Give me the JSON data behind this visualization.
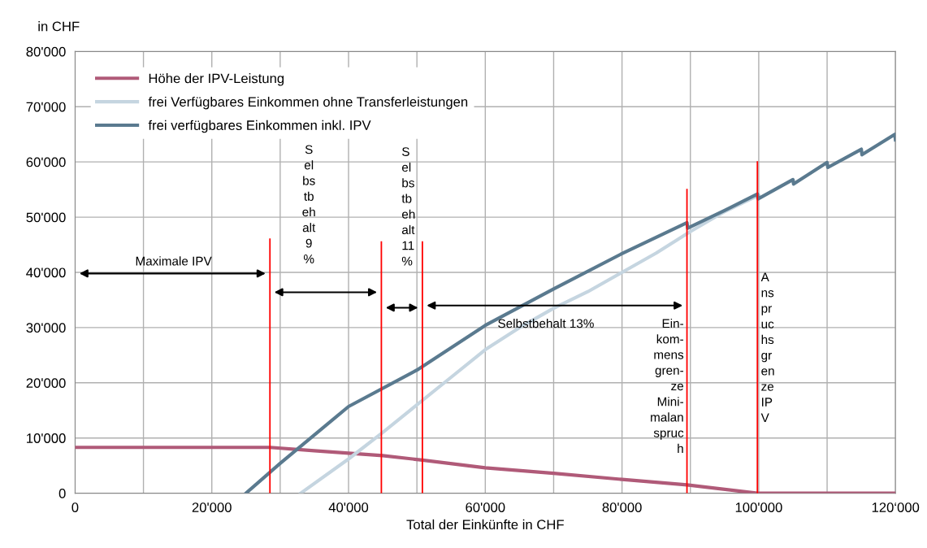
{
  "chart_data": {
    "type": "line",
    "xlabel": "Total der Einkünfte in CHF",
    "ylabel": "in CHF",
    "xlim": [
      0,
      120000
    ],
    "ylim": [
      0,
      80000
    ],
    "xticks": [
      0,
      {
        "value": 10000,
        "label": null
      },
      {
        "value": 20000,
        "label": "20'000"
      },
      {
        "value": 30000,
        "label": null
      },
      {
        "value": 40000,
        "label": "40'000"
      },
      {
        "value": 50000,
        "label": null
      },
      {
        "value": 60000,
        "label": "60'000"
      },
      {
        "value": 70000,
        "label": null
      },
      {
        "value": 80000,
        "label": "80'000"
      },
      {
        "value": 90000,
        "label": null
      },
      {
        "value": 100000,
        "label": "100'000"
      },
      {
        "value": 110000,
        "label": null
      },
      {
        "value": 120000,
        "label": "120‘000"
      }
    ],
    "yticks": [
      0,
      {
        "value": 10000,
        "label": "10'000"
      },
      {
        "value": 20000,
        "label": "20'000"
      },
      {
        "value": 30000,
        "label": "30'000"
      },
      {
        "value": 40000,
        "label": "40'000"
      },
      {
        "value": 50000,
        "label": "50'000"
      },
      {
        "value": 60000,
        "label": "60'000"
      },
      {
        "value": 70000,
        "label": "70'000"
      },
      {
        "value": 80000,
        "label": "80'000"
      }
    ],
    "grid": true,
    "legend": "top left",
    "series": [
      {
        "name": "Höhe der IPV-Leistung",
        "color": "#b05a78",
        "x": [
          0,
          28500,
          35000,
          45000,
          50800,
          60000,
          70000,
          80000,
          89500,
          99800,
          120000
        ],
        "values": [
          8300,
          8300,
          7700,
          6800,
          6000,
          4600,
          3600,
          2500,
          1500,
          0,
          0
        ]
      },
      {
        "name": "frei Verfügbares Einkommen ohne Transferleistungen",
        "color": "#c5d5e0",
        "x": [
          33000,
          40000,
          45000,
          50000,
          55000,
          60000,
          65000,
          70000,
          75000,
          80000,
          85000,
          90000,
          95000,
          100000
        ],
        "values": [
          0,
          6200,
          11000,
          16000,
          21000,
          26000,
          30000,
          33500,
          36500,
          40000,
          43500,
          47400,
          51000,
          54000
        ]
      },
      {
        "name": "frei verfügbares Einkommen inkl. IPV",
        "color": "#5a7a8f",
        "x": [
          25000,
          30000,
          40000,
          50000,
          60000,
          70000,
          80000,
          89500,
          89600,
          95000,
          99800,
          99900,
          105000,
          105100,
          110000,
          110100,
          115000,
          115100,
          119900,
          120000
        ],
        "values": [
          0,
          5400,
          15700,
          22300,
          30400,
          37000,
          43400,
          49000,
          48000,
          51200,
          54200,
          53300,
          56800,
          56000,
          59900,
          59000,
          62300,
          61300,
          65000,
          64000
        ]
      },
      {
        "color": "#ff0000",
        "x": [
          28500,
          28500
        ],
        "values": [
          0,
          46000
        ]
      },
      {
        "color": "#ff0000",
        "x": [
          44800,
          44800
        ],
        "values": [
          0,
          45500
        ]
      },
      {
        "color": "#ff0000",
        "x": [
          50800,
          50800
        ],
        "values": [
          0,
          45500
        ]
      },
      {
        "color": "#ff0000",
        "x": [
          89500,
          89500
        ],
        "values": [
          0,
          55000
        ]
      },
      {
        "color": "#ff0000",
        "x": [
          99800,
          99800
        ],
        "values": [
          0,
          60000
        ]
      }
    ],
    "annotations": [
      "Maximale IPV",
      "S\nel\nbs\ntb\neh\nalt\n9\n%",
      "S\nel\nbs\ntb\neh\nalt\n11\n%",
      "Selbstbehalt 13%",
      "Ein-\nkom-\nmens\ngren-\nze\nMini-\nmalan\nspruc\nh",
      "A\nns\npr\nuc\nhs\ngr\nen\nze\nIP\nV"
    ]
  }
}
